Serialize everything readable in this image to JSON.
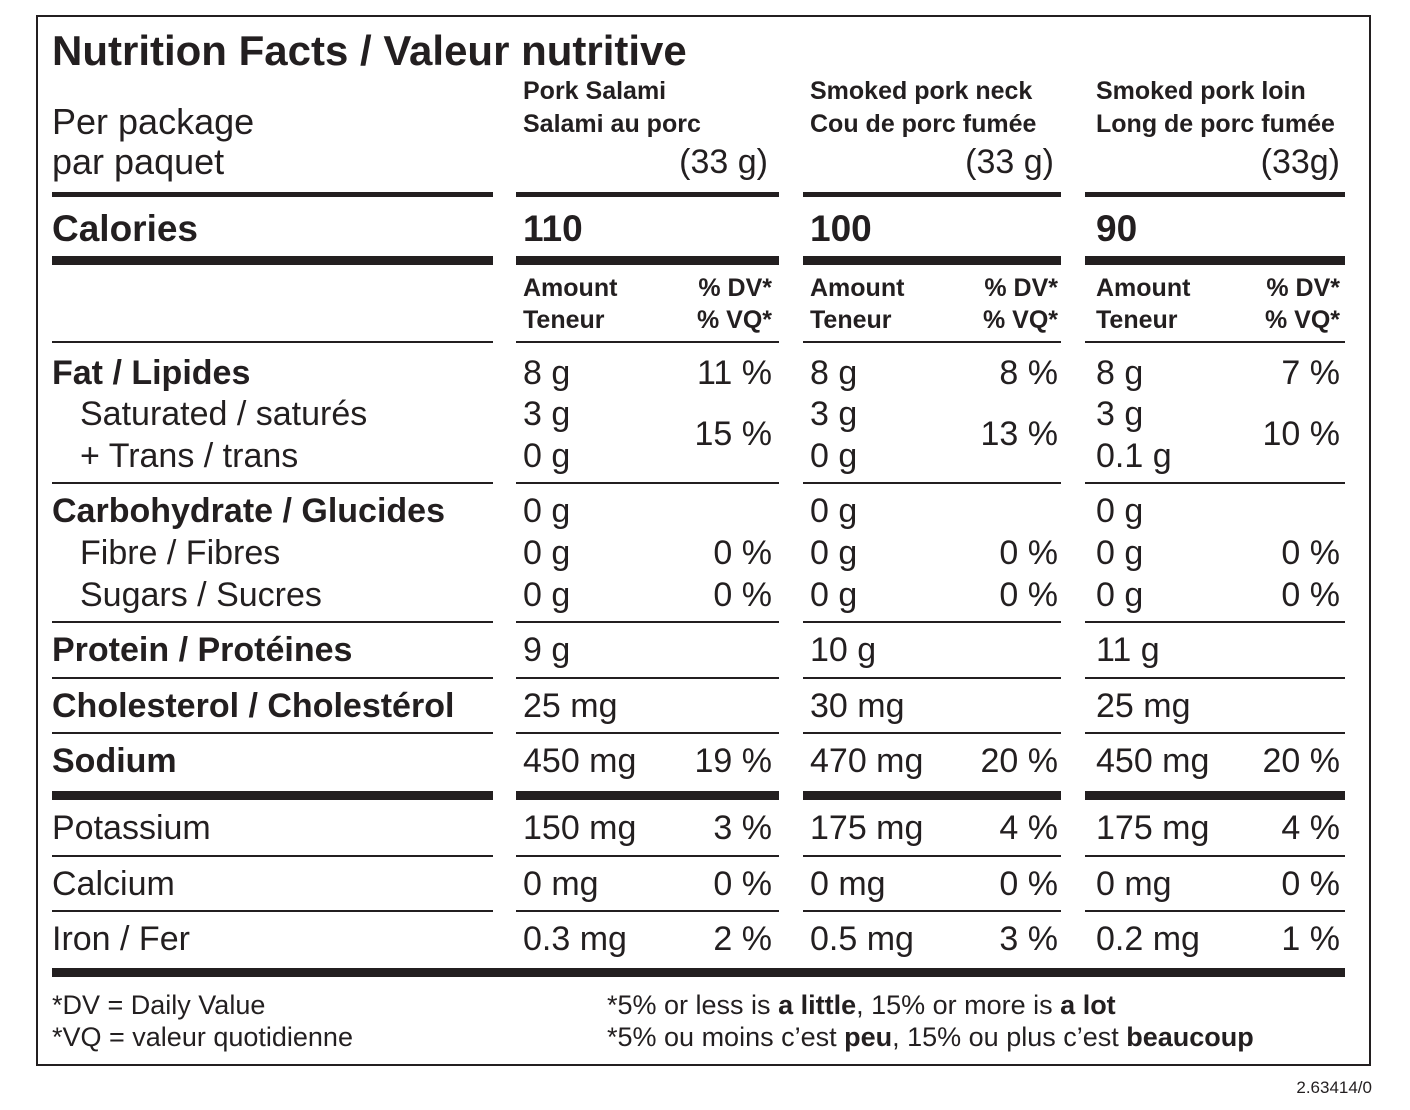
{
  "title": "Nutrition Facts / Valeur nutritive",
  "serving": {
    "line1": "Per package",
    "line2": "par paquet"
  },
  "products": [
    {
      "name_en": "Pork Salami",
      "name_fr": "Salami au porc",
      "size": "(33 g)",
      "calories": "110",
      "fat": {
        "amount": "8 g",
        "dv": "11 %"
      },
      "saturated": {
        "amount": "3 g"
      },
      "trans": {
        "amount": "0 g"
      },
      "sat_trans_dv": "15 %",
      "carbohydrate": {
        "amount": "0 g"
      },
      "fibre": {
        "amount": "0 g",
        "dv": "0 %"
      },
      "sugars": {
        "amount": "0 g",
        "dv": "0 %"
      },
      "protein": {
        "amount": "9 g"
      },
      "cholesterol": {
        "amount": "25 mg"
      },
      "sodium": {
        "amount": "450 mg",
        "dv": "19 %"
      },
      "potassium": {
        "amount": "150 mg",
        "dv": "3 %"
      },
      "calcium": {
        "amount": "0 mg",
        "dv": "0 %"
      },
      "iron": {
        "amount": "0.3 mg",
        "dv": "2 %"
      }
    },
    {
      "name_en": "Smoked pork neck",
      "name_fr": "Cou de porc fumée",
      "size": "(33 g)",
      "calories": "100",
      "fat": {
        "amount": "8 g",
        "dv": "8 %"
      },
      "saturated": {
        "amount": "3 g"
      },
      "trans": {
        "amount": "0 g"
      },
      "sat_trans_dv": "13 %",
      "carbohydrate": {
        "amount": "0 g"
      },
      "fibre": {
        "amount": "0 g",
        "dv": "0 %"
      },
      "sugars": {
        "amount": "0 g",
        "dv": "0 %"
      },
      "protein": {
        "amount": "10 g"
      },
      "cholesterol": {
        "amount": "30 mg"
      },
      "sodium": {
        "amount": "470 mg",
        "dv": "20 %"
      },
      "potassium": {
        "amount": "175 mg",
        "dv": "4 %"
      },
      "calcium": {
        "amount": "0 mg",
        "dv": "0 %"
      },
      "iron": {
        "amount": "0.5 mg",
        "dv": "3 %"
      }
    },
    {
      "name_en": "Smoked pork loin",
      "name_fr": "Long de porc fumée",
      "size": "(33g)",
      "calories": "90",
      "fat": {
        "amount": "8 g",
        "dv": "7 %"
      },
      "saturated": {
        "amount": "3 g"
      },
      "trans": {
        "amount": "0.1 g"
      },
      "sat_trans_dv": "10 %",
      "carbohydrate": {
        "amount": "0 g"
      },
      "fibre": {
        "amount": "0 g",
        "dv": "0 %"
      },
      "sugars": {
        "amount": "0 g",
        "dv": "0 %"
      },
      "protein": {
        "amount": "11 g"
      },
      "cholesterol": {
        "amount": "25 mg"
      },
      "sodium": {
        "amount": "450 mg",
        "dv": "20 %"
      },
      "potassium": {
        "amount": "175 mg",
        "dv": "4 %"
      },
      "calcium": {
        "amount": "0 mg",
        "dv": "0 %"
      },
      "iron": {
        "amount": "0.2 mg",
        "dv": "1 %"
      }
    }
  ],
  "labels": {
    "calories": "Calories",
    "amount": "Amount",
    "teneur": "Teneur",
    "dv": "% DV*",
    "vq": "% VQ*",
    "fat": "Fat / Lipides",
    "saturated": "Saturated / saturés",
    "trans": "+ Trans / trans",
    "carbohydrate": "Carbohydrate / Glucides",
    "fibre": "Fibre / Fibres",
    "sugars": "Sugars / Sucres",
    "protein": "Protein / Protéines",
    "cholesterol": "Cholesterol / Cholestérol",
    "sodium": "Sodium",
    "potassium": "Potassium",
    "calcium": "Calcium",
    "iron": "Iron / Fer"
  },
  "footnote": {
    "dv_def": "*DV = Daily Value",
    "vq_def": "*VQ = valeur quotidienne",
    "en": {
      "a": "*5% or less is ",
      "b": "a little",
      "c": ", 15% or more is ",
      "d": "a lot"
    },
    "fr": {
      "a": "*5% ou moins c’est ",
      "b": "peu",
      "c": ", 15% ou plus c’est ",
      "d": "beaucoup"
    }
  },
  "code": "2.63414/0"
}
